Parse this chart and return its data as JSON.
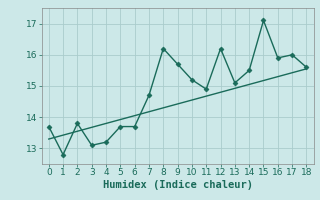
{
  "xlabel": "Humidex (Indice chaleur)",
  "ylabel": "",
  "bg_color": "#cce8e8",
  "grid_color": "#aacccc",
  "line_color": "#1a6b5a",
  "x_data": [
    0,
    1,
    2,
    3,
    4,
    5,
    6,
    7,
    8,
    9,
    10,
    11,
    12,
    13,
    14,
    15,
    16,
    17,
    18
  ],
  "y_data": [
    13.7,
    12.8,
    13.8,
    13.1,
    13.2,
    13.7,
    13.7,
    14.7,
    16.2,
    15.7,
    15.2,
    14.9,
    16.2,
    15.1,
    15.5,
    17.1,
    15.9,
    16.0,
    15.6
  ],
  "trend_x": [
    0,
    18
  ],
  "trend_y": [
    13.3,
    15.55
  ],
  "xlim": [
    -0.5,
    18.5
  ],
  "ylim": [
    12.5,
    17.5
  ],
  "xticks": [
    0,
    1,
    2,
    3,
    4,
    5,
    6,
    7,
    8,
    9,
    10,
    11,
    12,
    13,
    14,
    15,
    16,
    17,
    18
  ],
  "yticks": [
    13,
    14,
    15,
    16,
    17
  ],
  "tick_fontsize": 6.5,
  "label_fontsize": 7.5,
  "marker": "D",
  "marker_size": 2.5,
  "linewidth": 1.0
}
